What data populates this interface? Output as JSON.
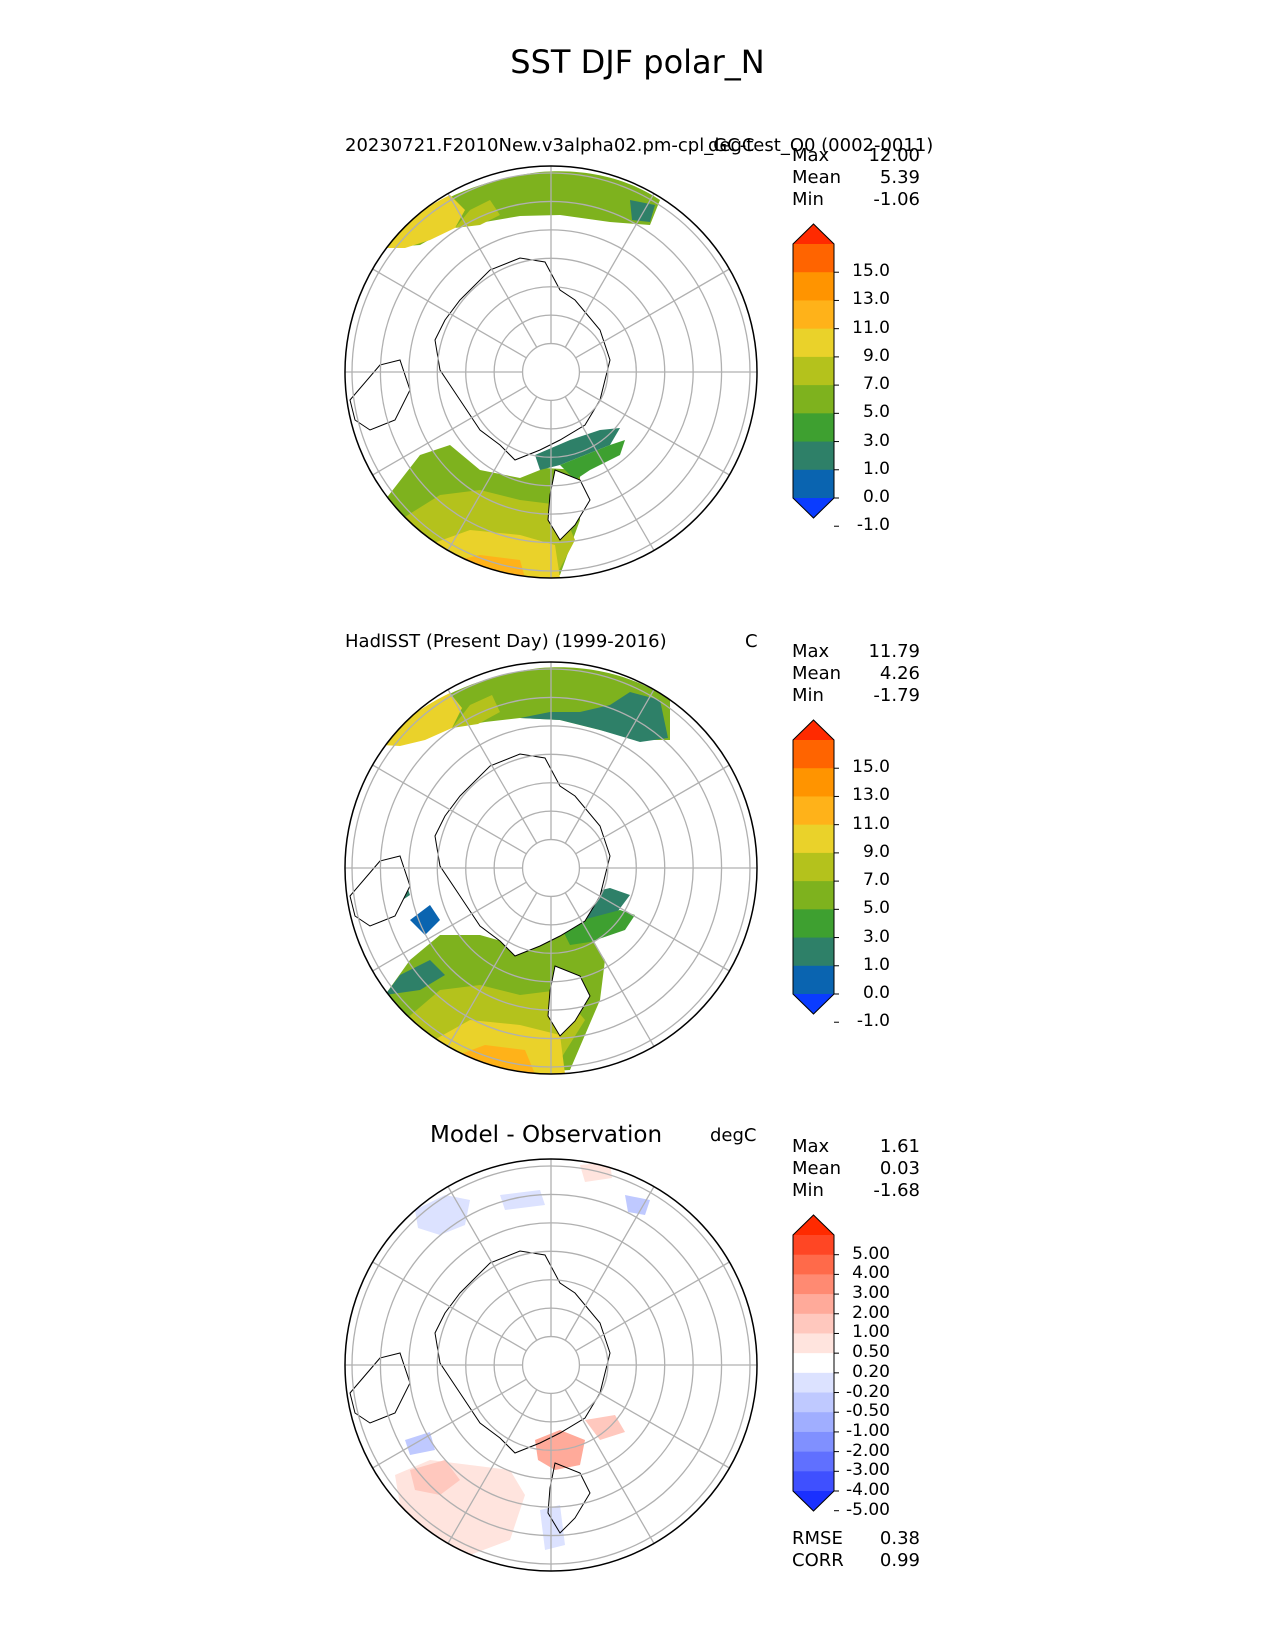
{
  "figure": {
    "title": "SST DJF polar_N"
  },
  "chart_data": [
    {
      "type": "heatmap",
      "projection": "north polar stereographic",
      "title": "20230721.F2010New.v3alpha02.pm-cpl_GC-test_O0 (0002-0011)",
      "units": "degC",
      "stats": [
        {
          "label": "Max",
          "value": "12.00"
        },
        {
          "label": "Mean",
          "value": "5.39"
        },
        {
          "label": "Min",
          "value": "-1.06"
        }
      ],
      "colorbar": {
        "levels": [
          "15.0",
          "13.0",
          "11.0",
          "9.0",
          "7.0",
          "5.0",
          "3.0",
          "1.0",
          "0.0",
          "-1.0"
        ],
        "colors": [
          "#ff2a00",
          "#ff6400",
          "#ff9400",
          "#ffb219",
          "#ead22a",
          "#b4c21c",
          "#7eb21e",
          "#3ea030",
          "#2e8068",
          "#0a64b0",
          "#0a3cff"
        ]
      }
    },
    {
      "type": "heatmap",
      "projection": "north polar stereographic",
      "title": "HadISST (Present Day) (1999-2016)",
      "units": "C",
      "stats": [
        {
          "label": "Max",
          "value": "11.79"
        },
        {
          "label": "Mean",
          "value": "4.26"
        },
        {
          "label": "Min",
          "value": "-1.79"
        }
      ],
      "colorbar": {
        "levels": [
          "15.0",
          "13.0",
          "11.0",
          "9.0",
          "7.0",
          "5.0",
          "3.0",
          "1.0",
          "0.0",
          "-1.0"
        ],
        "colors": [
          "#ff2a00",
          "#ff6400",
          "#ff9400",
          "#ffb219",
          "#ead22a",
          "#b4c21c",
          "#7eb21e",
          "#3ea030",
          "#2e8068",
          "#0a64b0",
          "#0a3cff"
        ]
      }
    },
    {
      "type": "heatmap",
      "projection": "north polar stereographic",
      "title": "Model - Observation",
      "units": "degC",
      "stats": [
        {
          "label": "Max",
          "value": "1.61"
        },
        {
          "label": "Mean",
          "value": "0.03"
        },
        {
          "label": "Min",
          "value": "-1.68"
        }
      ],
      "metrics": [
        {
          "label": "RMSE",
          "value": "0.38"
        },
        {
          "label": "CORR",
          "value": "0.99"
        }
      ],
      "colorbar": {
        "levels": [
          "5.00",
          "4.00",
          "3.00",
          "2.00",
          "1.00",
          "0.50",
          "0.20",
          "-0.20",
          "-0.50",
          "-1.00",
          "-2.00",
          "-3.00",
          "-4.00",
          "-5.00"
        ],
        "colors": [
          "#ff2a00",
          "#ff4624",
          "#ff6a4a",
          "#ff8a72",
          "#ffaa9a",
          "#ffc8be",
          "#ffe4de",
          "#ffffff",
          "#dce2ff",
          "#bfc9ff",
          "#a0aeff",
          "#8090ff",
          "#6070ff",
          "#3f50ff",
          "#1a30ff"
        ]
      }
    }
  ]
}
